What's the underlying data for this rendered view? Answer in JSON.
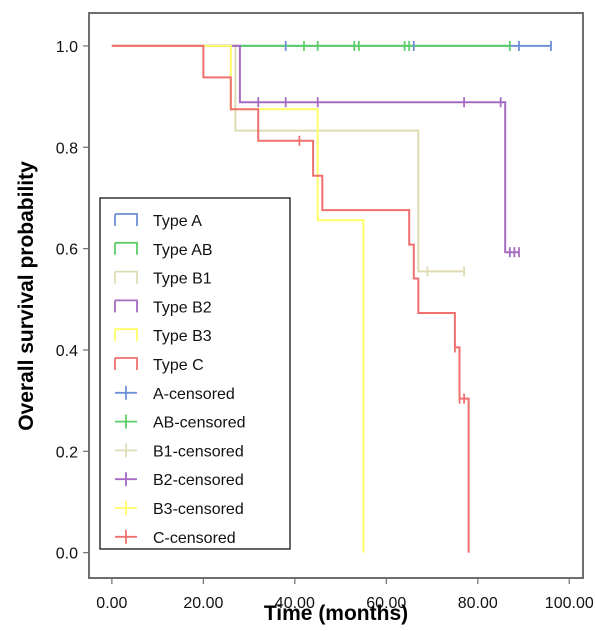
{
  "chart_data": {
    "type": "line",
    "title": "",
    "xlabel": "Time (months)",
    "ylabel": "Overall survival probability",
    "xlim": [
      -5,
      103
    ],
    "ylim": [
      -0.05,
      1.065
    ],
    "xticks": [
      0,
      20,
      40,
      60,
      80,
      100
    ],
    "xtick_labels": [
      "0.00",
      "20.00",
      "40.00",
      "60.00",
      "80.00",
      "100.00"
    ],
    "yticks": [
      0,
      0.2,
      0.4,
      0.6,
      0.8,
      1.0
    ],
    "ytick_labels": [
      "0.0",
      "0.2",
      "0.4",
      "0.6",
      "0.8",
      "1.0"
    ],
    "grid": false,
    "legend_position": "lower-left",
    "series": [
      {
        "name": "Type A",
        "color": "#6f8fd6",
        "step": [
          [
            0,
            1.0
          ],
          [
            96,
            1.0
          ]
        ],
        "censored": [
          [
            38,
            1.0
          ],
          [
            66,
            1.0
          ],
          [
            89,
            1.0
          ],
          [
            96,
            1.0
          ]
        ]
      },
      {
        "name": "Type AB",
        "color": "#5ccf6a",
        "step": [
          [
            0,
            1.0
          ],
          [
            87,
            1.0
          ]
        ],
        "censored": [
          [
            42,
            1.0
          ],
          [
            45,
            1.0
          ],
          [
            53,
            1.0
          ],
          [
            54,
            1.0
          ],
          [
            64,
            1.0
          ],
          [
            65,
            1.0
          ],
          [
            87,
            1.0
          ]
        ]
      },
      {
        "name": "Type B1",
        "color": "#dedcb4",
        "step": [
          [
            0,
            1.0
          ],
          [
            27,
            1.0
          ],
          [
            27,
            0.833
          ],
          [
            67,
            0.833
          ],
          [
            67,
            0.555
          ],
          [
            77,
            0.555
          ]
        ],
        "censored": [
          [
            69,
            0.555
          ],
          [
            77,
            0.555
          ]
        ]
      },
      {
        "name": "Type B2",
        "color": "#a56cc1",
        "step": [
          [
            0,
            1.0
          ],
          [
            28,
            1.0
          ],
          [
            28,
            0.889
          ],
          [
            86,
            0.889
          ],
          [
            86,
            0.593
          ],
          [
            89,
            0.593
          ]
        ],
        "censored": [
          [
            32,
            0.889
          ],
          [
            38,
            0.889
          ],
          [
            45,
            0.889
          ],
          [
            77,
            0.889
          ],
          [
            85,
            0.889
          ],
          [
            87,
            0.593
          ],
          [
            88,
            0.593
          ],
          [
            89,
            0.593
          ]
        ]
      },
      {
        "name": "Type B3",
        "color": "#ffff66",
        "step": [
          [
            0,
            1.0
          ],
          [
            26,
            1.0
          ],
          [
            26,
            0.875
          ],
          [
            45,
            0.875
          ],
          [
            45,
            0.656
          ],
          [
            55,
            0.656
          ],
          [
            55,
            0.0
          ]
        ],
        "censored": []
      },
      {
        "name": "Type C",
        "color": "#f07070",
        "step": [
          [
            0,
            1.0
          ],
          [
            20,
            1.0
          ],
          [
            20,
            0.938
          ],
          [
            26,
            0.938
          ],
          [
            26,
            0.875
          ],
          [
            32,
            0.875
          ],
          [
            32,
            0.813
          ],
          [
            44,
            0.813
          ],
          [
            44,
            0.744
          ],
          [
            46,
            0.744
          ],
          [
            46,
            0.676
          ],
          [
            65,
            0.676
          ],
          [
            65,
            0.608
          ],
          [
            66,
            0.608
          ],
          [
            66,
            0.541
          ],
          [
            67,
            0.541
          ],
          [
            67,
            0.473
          ],
          [
            75,
            0.473
          ],
          [
            75,
            0.405
          ],
          [
            76,
            0.405
          ],
          [
            76,
            0.304
          ],
          [
            78,
            0.304
          ],
          [
            78,
            0.0
          ]
        ],
        "censored": [
          [
            41,
            0.813
          ],
          [
            75,
            0.405
          ],
          [
            76,
            0.304
          ],
          [
            77,
            0.304
          ]
        ]
      }
    ],
    "legend": [
      {
        "label": "Type A",
        "kind": "line",
        "color": "#6f8fd6"
      },
      {
        "label": "Type AB",
        "kind": "line",
        "color": "#5ccf6a"
      },
      {
        "label": "Type B1",
        "kind": "line",
        "color": "#dedcb4"
      },
      {
        "label": "Type B2",
        "kind": "line",
        "color": "#a56cc1"
      },
      {
        "label": "Type B3",
        "kind": "line",
        "color": "#ffff66"
      },
      {
        "label": "Type C",
        "kind": "line",
        "color": "#f07070"
      },
      {
        "label": "A-censored",
        "kind": "censor",
        "color": "#6f8fd6"
      },
      {
        "label": "AB-censored",
        "kind": "censor",
        "color": "#5ccf6a"
      },
      {
        "label": "B1-censored",
        "kind": "censor",
        "color": "#dedcb4"
      },
      {
        "label": "B2-censored",
        "kind": "censor",
        "color": "#a56cc1"
      },
      {
        "label": "B3-censored",
        "kind": "censor",
        "color": "#ffff66"
      },
      {
        "label": "C-censored",
        "kind": "censor",
        "color": "#f07070"
      }
    ]
  }
}
